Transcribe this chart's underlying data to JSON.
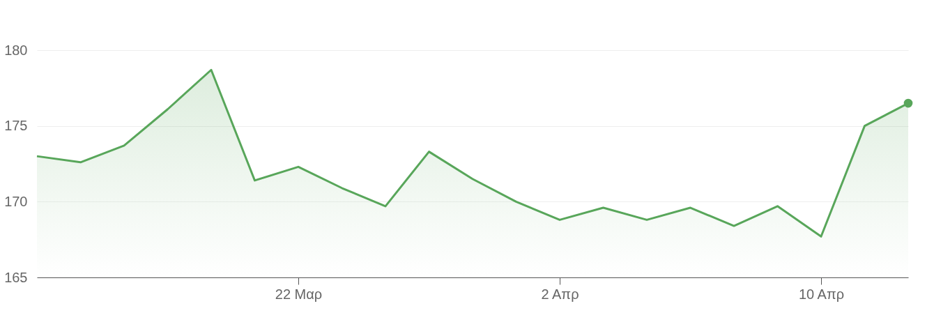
{
  "chart_data": {
    "type": "area",
    "categories": [
      null,
      null,
      null,
      null,
      null,
      null,
      "22 Μαρ",
      null,
      null,
      null,
      null,
      null,
      "2 Απρ",
      null,
      null,
      null,
      null,
      null,
      "10 Απρ",
      null,
      null
    ],
    "series": [
      {
        "color": "#58a65a",
        "values": [
          173.0,
          172.6,
          173.7,
          176.1,
          178.7,
          171.4,
          172.3,
          170.9,
          169.7,
          173.3,
          171.5,
          170.0,
          168.8,
          169.6,
          168.8,
          169.6,
          168.4,
          169.7,
          167.7,
          175.0,
          176.5
        ]
      }
    ],
    "ylim": [
      165,
      180
    ],
    "yticks": [
      165,
      170,
      175,
      180
    ],
    "grid": "y"
  }
}
